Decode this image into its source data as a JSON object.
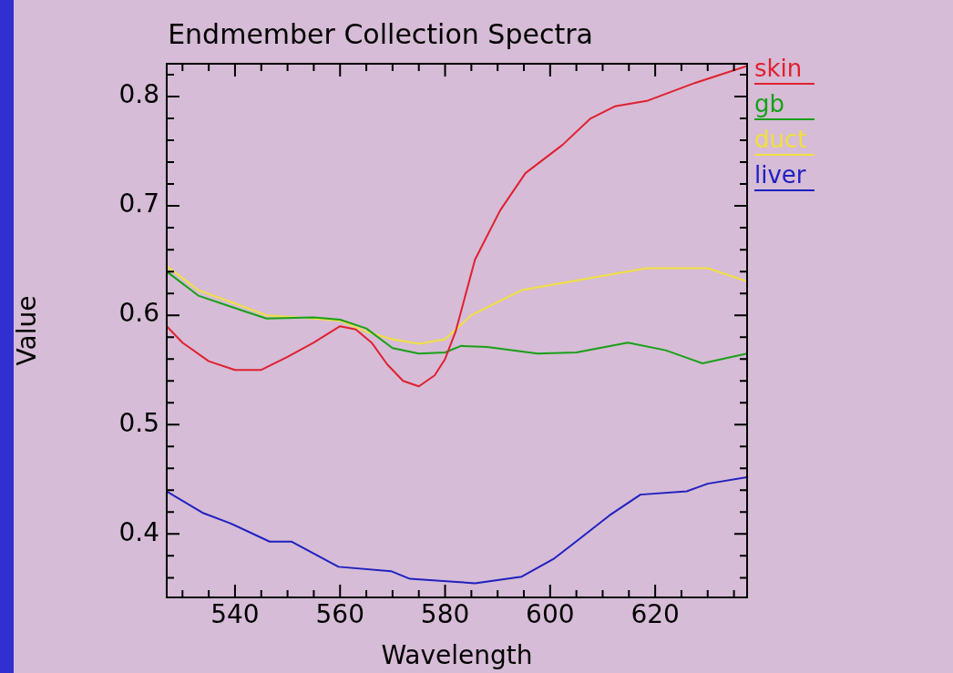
{
  "chart_data": {
    "type": "line",
    "title": "Endmember Collection Spectra",
    "xlabel": "Wavelength",
    "ylabel": "Value",
    "xlim": [
      527,
      637.5
    ],
    "ylim": [
      0.342,
      0.83
    ],
    "xticks": [
      {
        "value": 530,
        "label": null
      },
      {
        "value": 535,
        "label": null
      },
      540,
      {
        "value": 545,
        "label": null
      },
      {
        "value": 550,
        "label": null
      },
      {
        "value": 555,
        "label": null
      },
      560,
      {
        "value": 565,
        "label": null
      },
      {
        "value": 570,
        "label": null
      },
      {
        "value": 575,
        "label": null
      },
      580,
      {
        "value": 585,
        "label": null
      },
      {
        "value": 590,
        "label": null
      },
      {
        "value": 595,
        "label": null
      },
      600,
      {
        "value": 605,
        "label": null
      },
      {
        "value": 610,
        "label": null
      },
      {
        "value": 615,
        "label": null
      },
      620,
      {
        "value": 625,
        "label": null
      },
      {
        "value": 630,
        "label": null
      },
      {
        "value": 635,
        "label": null
      }
    ],
    "yticks": [
      {
        "value": 0.36,
        "label": null
      },
      {
        "value": 0.38,
        "label": null
      },
      {
        "value": 0.4,
        "label": "0.4"
      },
      {
        "value": 0.42,
        "label": null
      },
      {
        "value": 0.44,
        "label": null
      },
      {
        "value": 0.46,
        "label": null
      },
      {
        "value": 0.48,
        "label": null
      },
      {
        "value": 0.5,
        "label": "0.5"
      },
      {
        "value": 0.52,
        "label": null
      },
      {
        "value": 0.54,
        "label": null
      },
      {
        "value": 0.56,
        "label": null
      },
      {
        "value": 0.58,
        "label": null
      },
      {
        "value": 0.6,
        "label": "0.6"
      },
      {
        "value": 0.62,
        "label": null
      },
      {
        "value": 0.64,
        "label": null
      },
      {
        "value": 0.66,
        "label": null
      },
      {
        "value": 0.68,
        "label": null
      },
      {
        "value": 0.7,
        "label": "0.7"
      },
      {
        "value": 0.72,
        "label": null
      },
      {
        "value": 0.74,
        "label": null
      },
      {
        "value": 0.76,
        "label": null
      },
      {
        "value": 0.78,
        "label": null
      },
      {
        "value": 0.8,
        "label": "0.8"
      },
      {
        "value": 0.82,
        "label": null
      }
    ],
    "legend": "right",
    "marker": "none",
    "line_style": "solid",
    "series": [
      {
        "name": "skin",
        "color": "#e02030",
        "x": [
          527,
          530,
          535,
          540,
          545,
          550,
          555,
          560,
          563,
          566,
          569,
          572,
          575,
          578,
          580,
          582,
          585.7,
          590.5,
          595.3,
          602.4,
          607.7,
          612.3,
          618.4,
          627.3,
          637.5
        ],
        "values": [
          0.59,
          0.575,
          0.558,
          0.55,
          0.55,
          0.562,
          0.575,
          0.59,
          0.587,
          0.575,
          0.555,
          0.54,
          0.535,
          0.545,
          0.56,
          0.585,
          0.651,
          0.696,
          0.73,
          0.756,
          0.78,
          0.791,
          0.796,
          0.812,
          0.828
        ]
      },
      {
        "name": "gb",
        "color": "#18a018",
        "x": [
          527,
          533,
          541,
          546,
          555,
          560,
          565,
          570,
          575,
          580,
          583,
          588,
          597.6,
          605,
          614.8,
          622,
          629,
          637.5
        ],
        "values": [
          0.64,
          0.618,
          0.605,
          0.597,
          0.598,
          0.596,
          0.588,
          0.57,
          0.565,
          0.566,
          0.572,
          0.571,
          0.565,
          0.566,
          0.575,
          0.568,
          0.556,
          0.565
        ]
      },
      {
        "name": "duct",
        "color": "#f0e040",
        "x": [
          527,
          533,
          541,
          546,
          555,
          560,
          565,
          570,
          575,
          580,
          585,
          594.6,
          606.5,
          618.4,
          630,
          637.5
        ],
        "values": [
          0.645,
          0.623,
          0.609,
          0.6,
          0.597,
          0.595,
          0.585,
          0.578,
          0.574,
          0.578,
          0.6,
          0.623,
          0.633,
          0.643,
          0.643,
          0.631
        ]
      },
      {
        "name": "liver",
        "color": "#2020c0",
        "x": [
          527,
          534,
          539,
          546.6,
          550.8,
          559.7,
          569.7,
          573.3,
          582.8,
          585.7,
          594.6,
          600.6,
          605.2,
          611.3,
          617.2,
          626,
          630,
          637.5
        ],
        "values": [
          0.439,
          0.419,
          0.41,
          0.393,
          0.393,
          0.37,
          0.366,
          0.359,
          0.356,
          0.355,
          0.361,
          0.377,
          0.394,
          0.417,
          0.436,
          0.439,
          0.446,
          0.452
        ]
      }
    ]
  }
}
